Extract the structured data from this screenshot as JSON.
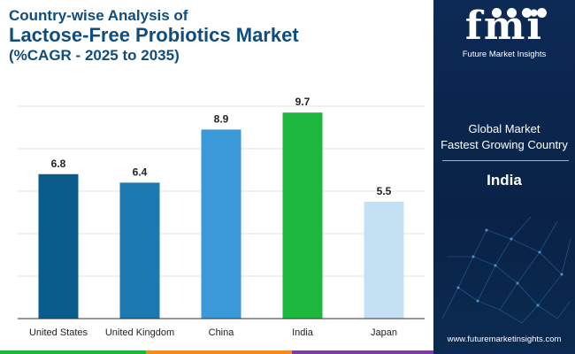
{
  "title": {
    "line1": "Country-wise Analysis of",
    "line2": "Lactose-Free Probiotics Market",
    "line3": "(%CAGR - 2025 to 2035)"
  },
  "chart_data": {
    "type": "bar",
    "categories": [
      "United States",
      "United Kingdom",
      "China",
      "India",
      "Japan"
    ],
    "values": [
      6.8,
      6.4,
      8.9,
      9.7,
      5.5
    ],
    "colors": [
      "#0a5c8c",
      "#1c79b0",
      "#3a9ad9",
      "#1cb83e",
      "#c4e1f4"
    ],
    "ylim": [
      0,
      10
    ],
    "grid": true,
    "legend": "none"
  },
  "panel": {
    "logo_text": "fmi",
    "logo_sub": "Future Market Insights",
    "info_line1": "Global Market",
    "info_line2": "Fastest Growing Country",
    "highlight_country": "India",
    "url": "www.futuremarketinsights.com",
    "accent_dark": "#0c2a55"
  },
  "bottom_bar_colors": [
    "#1cb83e",
    "#f28c1e",
    "#7b3fa0",
    "#0c2a55"
  ]
}
